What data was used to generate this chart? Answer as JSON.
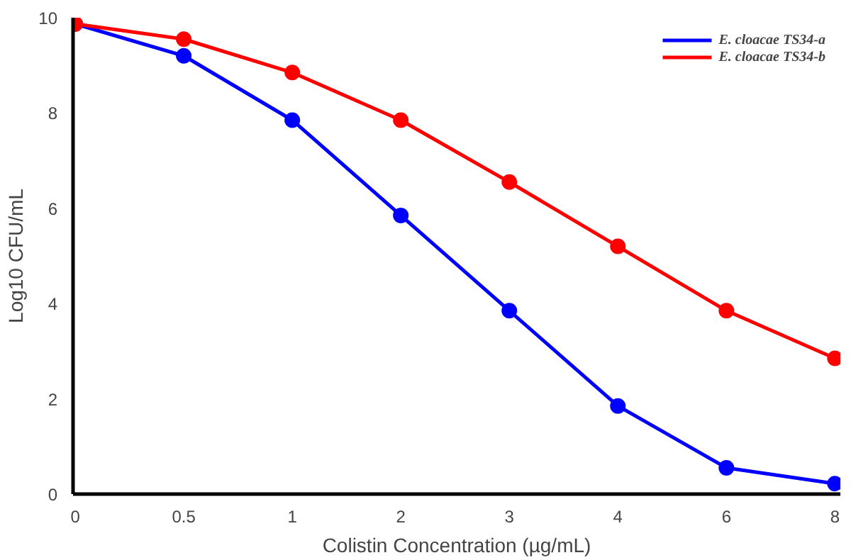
{
  "chart_data": {
    "type": "line",
    "xlabel": "Colistin Concentration (µg/mL)",
    "ylabel": "Log10 CFU/mL",
    "categories": [
      "0",
      "0.5",
      "1",
      "2",
      "3",
      "4",
      "6",
      "8"
    ],
    "series": [
      {
        "name": "E. cloacae TS34-a",
        "color": "#0000ff",
        "values": [
          9.87,
          9.2,
          7.85,
          5.85,
          3.85,
          1.85,
          0.55,
          0.22
        ]
      },
      {
        "name": "E. cloacae TS34-b",
        "color": "#ff0000",
        "values": [
          9.87,
          9.55,
          8.85,
          7.85,
          6.55,
          5.2,
          3.85,
          2.85
        ]
      }
    ],
    "ylim": [
      0,
      10
    ],
    "yticks": [
      0,
      2,
      4,
      6,
      8,
      10
    ],
    "grid": false,
    "legend": "top right",
    "marker": "circle",
    "line_style": "solid"
  }
}
